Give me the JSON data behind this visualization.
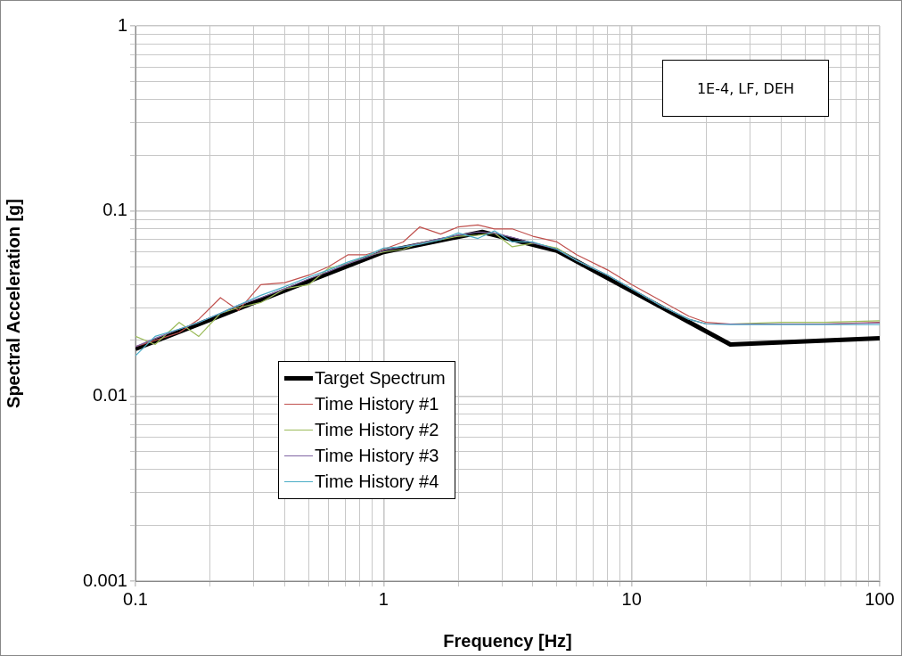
{
  "chart_data": {
    "type": "line",
    "xlabel": "Frequency [Hz]",
    "ylabel": "Spectral Acceleration [g]",
    "log": "xy",
    "grid": true,
    "legend": "bottom left",
    "marker": "none",
    "line_style": "solid",
    "xlim": [
      0.1,
      100
    ],
    "ylim": [
      0.001,
      1
    ],
    "xticks": [
      0.1,
      {
        "value": 0.2,
        "label": null
      },
      {
        "value": 0.3,
        "label": null
      },
      {
        "value": 0.4,
        "label": null
      },
      {
        "value": 0.5,
        "label": null
      },
      {
        "value": 0.6,
        "label": null
      },
      {
        "value": 0.7,
        "label": null
      },
      {
        "value": 0.8,
        "label": null
      },
      {
        "value": 0.9,
        "label": null
      },
      1,
      {
        "value": 2,
        "label": null
      },
      {
        "value": 3,
        "label": null
      },
      {
        "value": 4,
        "label": null
      },
      {
        "value": 5,
        "label": null
      },
      {
        "value": 6,
        "label": null
      },
      {
        "value": 7,
        "label": null
      },
      {
        "value": 8,
        "label": null
      },
      {
        "value": 9,
        "label": null
      },
      10,
      {
        "value": 20,
        "label": null
      },
      {
        "value": 30,
        "label": null
      },
      {
        "value": 40,
        "label": null
      },
      {
        "value": 50,
        "label": null
      },
      {
        "value": 60,
        "label": null
      },
      {
        "value": 70,
        "label": null
      },
      {
        "value": 80,
        "label": null
      },
      {
        "value": 90,
        "label": null
      },
      100
    ],
    "yticks": [
      0.001,
      {
        "value": 0.002,
        "label": null
      },
      {
        "value": 0.003,
        "label": null
      },
      {
        "value": 0.004,
        "label": null
      },
      {
        "value": 0.005,
        "label": null
      },
      {
        "value": 0.006,
        "label": null
      },
      {
        "value": 0.007,
        "label": null
      },
      {
        "value": 0.008,
        "label": null
      },
      {
        "value": 0.009,
        "label": null
      },
      0.01,
      {
        "value": 0.02,
        "label": null
      },
      {
        "value": 0.03,
        "label": null
      },
      {
        "value": 0.04,
        "label": null
      },
      {
        "value": 0.05,
        "label": null
      },
      {
        "value": 0.06,
        "label": null
      },
      {
        "value": 0.07,
        "label": null
      },
      {
        "value": 0.08,
        "label": null
      },
      {
        "value": 0.09,
        "label": null
      },
      0.1,
      {
        "value": 0.2,
        "label": null
      },
      {
        "value": 0.3,
        "label": null
      },
      {
        "value": 0.4,
        "label": null
      },
      {
        "value": 0.5,
        "label": null
      },
      {
        "value": 0.6,
        "label": null
      },
      {
        "value": 0.7,
        "label": null
      },
      {
        "value": 0.8,
        "label": null
      },
      {
        "value": 0.9,
        "label": null
      },
      1
    ],
    "annotations": [
      "1E-4, LF, DEH"
    ],
    "series": [
      {
        "name": "Target Spectrum",
        "color": "#000000",
        "x": [
          0.1,
          1,
          2.5,
          5,
          25,
          100
        ],
        "values": [
          0.018,
          0.06,
          0.077,
          0.061,
          0.019,
          0.0205
        ]
      },
      {
        "name": "Time History #1",
        "color": "#c0504d",
        "x": [
          0.1,
          0.12,
          0.15,
          0.18,
          0.22,
          0.26,
          0.32,
          0.4,
          0.5,
          0.6,
          0.72,
          0.85,
          1,
          1.2,
          1.4,
          1.7,
          2,
          2.4,
          2.8,
          3.3,
          4,
          5,
          6,
          8,
          10,
          13,
          17,
          20,
          25,
          40,
          60,
          100
        ],
        "values": [
          0.0185,
          0.02,
          0.022,
          0.026,
          0.034,
          0.029,
          0.04,
          0.041,
          0.045,
          0.05,
          0.058,
          0.058,
          0.062,
          0.068,
          0.082,
          0.075,
          0.082,
          0.084,
          0.08,
          0.08,
          0.073,
          0.068,
          0.058,
          0.048,
          0.04,
          0.033,
          0.027,
          0.025,
          0.0245,
          0.0245,
          0.0245,
          0.025
        ]
      },
      {
        "name": "Time History #2",
        "color": "#9bbb59",
        "x": [
          0.1,
          0.12,
          0.15,
          0.18,
          0.22,
          0.26,
          0.32,
          0.4,
          0.5,
          0.6,
          0.72,
          0.85,
          1,
          1.2,
          1.4,
          1.7,
          2,
          2.4,
          2.8,
          3.3,
          4,
          5,
          6,
          8,
          10,
          13,
          17,
          20,
          25,
          40,
          60,
          100
        ],
        "values": [
          0.021,
          0.019,
          0.025,
          0.021,
          0.028,
          0.03,
          0.032,
          0.038,
          0.04,
          0.049,
          0.052,
          0.057,
          0.06,
          0.062,
          0.067,
          0.07,
          0.073,
          0.074,
          0.076,
          0.064,
          0.067,
          0.063,
          0.054,
          0.045,
          0.038,
          0.031,
          0.026,
          0.0245,
          0.0245,
          0.025,
          0.025,
          0.0255
        ]
      },
      {
        "name": "Time History #3",
        "color": "#8064a2",
        "x": [
          0.1,
          0.12,
          0.15,
          0.18,
          0.22,
          0.26,
          0.32,
          0.4,
          0.5,
          0.6,
          0.72,
          0.85,
          1,
          1.2,
          1.4,
          1.7,
          2,
          2.4,
          2.8,
          3.3,
          4,
          5,
          6,
          8,
          10,
          13,
          17,
          20,
          25,
          40,
          60,
          100
        ],
        "values": [
          0.0185,
          0.0205,
          0.023,
          0.025,
          0.028,
          0.031,
          0.034,
          0.038,
          0.043,
          0.047,
          0.052,
          0.056,
          0.061,
          0.064,
          0.067,
          0.071,
          0.074,
          0.077,
          0.076,
          0.072,
          0.067,
          0.062,
          0.054,
          0.045,
          0.038,
          0.031,
          0.026,
          0.0245,
          0.0245,
          0.0245,
          0.0245,
          0.0248
        ]
      },
      {
        "name": "Time History #4",
        "color": "#4bacc6",
        "x": [
          0.1,
          0.12,
          0.15,
          0.18,
          0.22,
          0.26,
          0.32,
          0.4,
          0.5,
          0.6,
          0.72,
          0.85,
          1,
          1.2,
          1.4,
          1.7,
          2,
          2.4,
          2.8,
          3.3,
          4,
          5,
          6,
          8,
          10,
          13,
          17,
          20,
          25,
          40,
          60,
          100
        ],
        "values": [
          0.0165,
          0.021,
          0.023,
          0.025,
          0.028,
          0.031,
          0.035,
          0.039,
          0.044,
          0.048,
          0.053,
          0.057,
          0.063,
          0.064,
          0.066,
          0.07,
          0.076,
          0.071,
          0.078,
          0.068,
          0.068,
          0.062,
          0.054,
          0.045,
          0.038,
          0.031,
          0.026,
          0.0245,
          0.0243,
          0.0243,
          0.0243,
          0.0243
        ]
      }
    ]
  }
}
